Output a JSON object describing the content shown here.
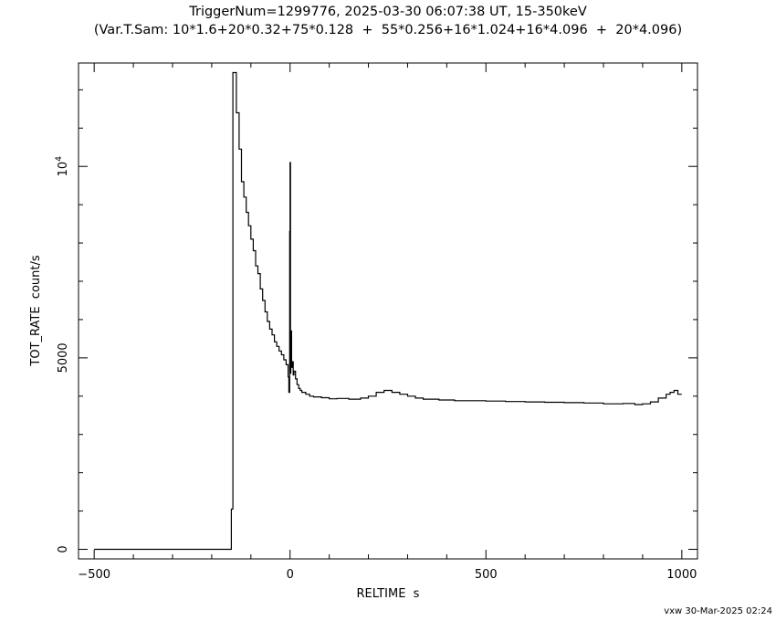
{
  "title": "TriggerNum=1299776, 2025-03-30 06:07:38 UT, 15-350keV",
  "subtitle": "(Var.T.Sam: 10*1.6+20*0.32+75*0.128  +  55*0.256+16*1.024+16*4.096  +  20*4.096)",
  "footer": "vxw 30-Mar-2025 02:24",
  "chart_data": {
    "type": "line",
    "title": "TriggerNum=1299776, 2025-03-30 06:07:38 UT, 15-350keV",
    "subtitle": "(Var.T.Sam: 10*1.6+20*0.32+75*0.128  +  55*0.256+16*1.024+16*4.096  +  20*4.096)",
    "xlabel": "RELTIME  s",
    "ylabel": "TOT_RATE  count/s",
    "xlim": [
      -540,
      1040
    ],
    "ylim": [
      -250,
      12700
    ],
    "grid": false,
    "legend": "none",
    "x_ticks": [
      {
        "value": -500,
        "label": "−500"
      },
      {
        "value": 0,
        "label": "0"
      },
      {
        "value": 500,
        "label": "500"
      },
      {
        "value": 1000,
        "label": "1000"
      }
    ],
    "y_ticks": [
      {
        "value": 0,
        "label": "0"
      },
      {
        "value": 5000,
        "label": "5000"
      },
      {
        "value": 10000,
        "label": "10",
        "exponent": "4"
      }
    ],
    "series": [
      {
        "style": "step",
        "x": [
          -500,
          -150,
          -146,
          -137,
          -130,
          -124,
          -118,
          -112,
          -106,
          -100,
          -94,
          -88,
          -82,
          -76,
          -70,
          -64,
          -58,
          -52,
          -46,
          -40,
          -34,
          -28,
          -22,
          -16,
          -10,
          -5,
          -3,
          -1,
          0,
          1,
          2,
          3,
          4,
          6,
          8,
          10,
          14,
          18,
          22,
          26,
          30,
          40,
          50,
          60,
          80,
          100,
          120,
          150,
          180,
          200,
          220,
          240,
          260,
          280,
          300,
          320,
          340,
          380,
          420,
          460,
          500,
          550,
          600,
          650,
          700,
          750,
          800,
          850,
          880,
          900,
          920,
          940,
          960,
          970,
          980,
          990,
          1000
        ],
        "y": [
          0,
          1050,
          12450,
          11400,
          10450,
          9600,
          9200,
          8800,
          8450,
          8100,
          7800,
          7400,
          7200,
          6800,
          6500,
          6200,
          5950,
          5750,
          5600,
          5420,
          5300,
          5180,
          5080,
          4950,
          4820,
          4500,
          4100,
          8300,
          10100,
          4600,
          5500,
          5700,
          4750,
          4900,
          4550,
          4650,
          4450,
          4300,
          4200,
          4150,
          4100,
          4050,
          4000,
          3980,
          3960,
          3930,
          3940,
          3920,
          3950,
          4000,
          4100,
          4150,
          4100,
          4050,
          4000,
          3950,
          3920,
          3900,
          3880,
          3880,
          3870,
          3860,
          3850,
          3840,
          3830,
          3820,
          3800,
          3810,
          3780,
          3800,
          3850,
          3950,
          4050,
          4100,
          4150,
          4050,
          4050
        ]
      }
    ]
  }
}
